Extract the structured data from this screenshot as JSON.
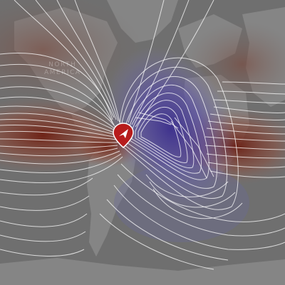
{
  "map": {
    "labels": {
      "north_america_line1": "NORTH",
      "north_america_line2": "AMERICA"
    },
    "colors": {
      "land": "#8a8a8a",
      "ocean": "#6e6e6e",
      "positive": "#7a2a1e",
      "negative": "#4a3a9a",
      "contour": "#ffffff",
      "marker": "#b71c1c"
    },
    "layers": [
      "basemap",
      "field-shading",
      "contour-lines",
      "location-marker"
    ],
    "marker_icon": "navigation-arrow-icon"
  }
}
